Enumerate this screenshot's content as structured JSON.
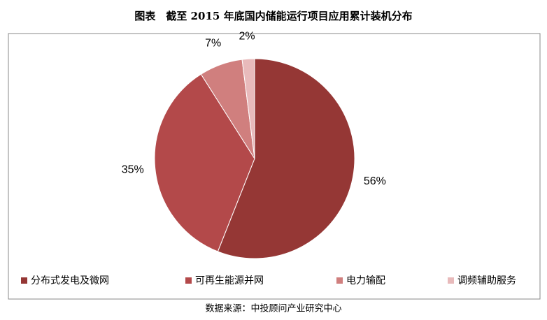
{
  "chart_data": {
    "type": "pie",
    "title": "图表　截至 2015 年底国内储能运行项目应用累计装机分布",
    "categories": [
      "分布式发电及微网",
      "可再生能源并网",
      "电力输配",
      "调频辅助服务"
    ],
    "values": [
      56,
      35,
      7,
      2
    ],
    "value_labels": [
      "56%",
      "35%",
      "7%",
      "2%"
    ],
    "colors": [
      "#953735",
      "#b3494a",
      "#d07f7e",
      "#e8babb"
    ],
    "legend": "bottom",
    "source": "数据来源：中投顾问产业研究中心"
  }
}
